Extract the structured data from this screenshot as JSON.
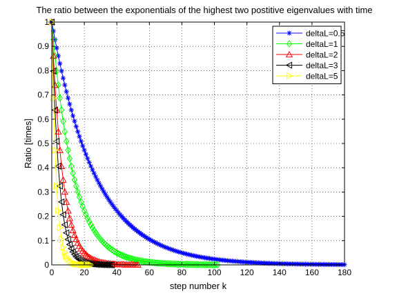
{
  "chart_data": {
    "type": "line",
    "title": "The ratio between the exponentials of the highest two postitive eigenvalues with time",
    "xlabel": "step number k",
    "ylabel": "Ratio [times]",
    "xlim": [
      0,
      180
    ],
    "ylim": [
      0,
      1
    ],
    "xticks": [
      0,
      20,
      40,
      60,
      80,
      100,
      120,
      140,
      160,
      180
    ],
    "yticks": [
      0,
      0.1,
      0.2,
      0.3,
      0.4,
      0.5,
      0.6,
      0.7,
      0.8,
      0.9,
      1
    ],
    "grid": true,
    "legend_position": "top-right",
    "model": "ratio = exp(-decay * k)",
    "series": [
      {
        "name": "deltaL=0.5",
        "color": "#0000ff",
        "marker": "asterisk",
        "decay": 0.0375,
        "k_max": 180
      },
      {
        "name": "deltaL=1",
        "color": "#00ff00",
        "marker": "diamond",
        "decay": 0.075,
        "k_max": 102
      },
      {
        "name": "deltaL=2",
        "color": "#ff0000",
        "marker": "triangle-up",
        "decay": 0.15,
        "k_max": 53
      },
      {
        "name": "deltaL=3",
        "color": "#000000",
        "marker": "triangle-left",
        "decay": 0.225,
        "k_max": 37
      },
      {
        "name": "deltaL=5",
        "color": "#ffff00",
        "marker": "triangle-right",
        "decay": 0.375,
        "k_max": 24
      }
    ]
  }
}
